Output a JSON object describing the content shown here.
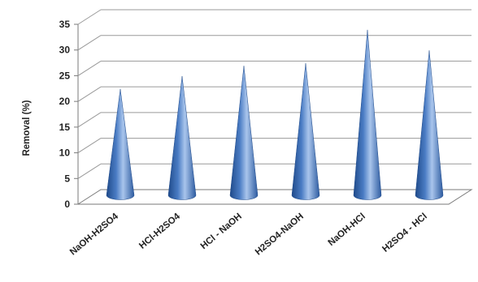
{
  "chart_data": {
    "type": "bar",
    "bar_shape": "cone",
    "view": "3d",
    "categories": [
      "NaOH-H2SO4",
      "HCl-H2SO4",
      "HCl - NaOH",
      "H2SO4-NaOH",
      "NaOH-HCl",
      "H2SO4 - HCl"
    ],
    "values": [
      21,
      23.5,
      25.5,
      26,
      32.5,
      28.5
    ],
    "title": "",
    "xlabel": "",
    "ylabel": "Removal (%)",
    "ylim": [
      0,
      35
    ],
    "yticks": [
      0,
      5,
      10,
      15,
      20,
      25,
      30,
      35
    ],
    "grid": true,
    "legend": "none",
    "colors": {
      "bar": "#4a7cc4",
      "bar_dark": "#1f4a8a",
      "bar_light": "#a9c5ec",
      "grid": "#9a9a9a",
      "axis": "#7a7a7a"
    }
  }
}
